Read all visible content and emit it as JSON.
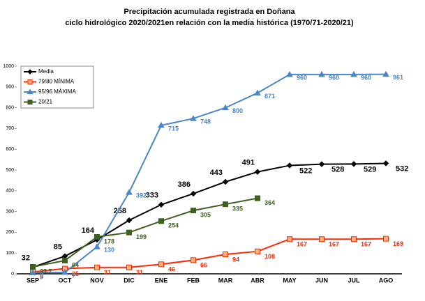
{
  "chart_data": {
    "type": "line",
    "title": "Precipitación acumulada registrada en Doñana",
    "subtitle": "ciclo hidrológico 2020/2021en relación con la media histórica (1970/71-2020/21)",
    "categories": [
      "SEP",
      "OCT",
      "NOV",
      "DIC",
      "ENE",
      "FEB",
      "MAR",
      "ABR",
      "MAY",
      "JUN",
      "JUL",
      "AGO"
    ],
    "series": [
      {
        "name": "Media",
        "color": "#000000",
        "marker": "diamond",
        "values": [
          32,
          85,
          164,
          258,
          333,
          386,
          443,
          491,
          522,
          528,
          529,
          532
        ]
      },
      {
        "name": "79/80 MÍNIMA",
        "color": "#ff2a00",
        "marker": "square",
        "values": [
          9,
          25,
          31,
          31,
          46,
          66,
          94,
          108,
          167,
          167,
          167,
          169
        ]
      },
      {
        "name": "95/96 MÁXIMA",
        "color": "#4a86c8",
        "marker": "triangle",
        "values": [
          5,
          7,
          130,
          392,
          715,
          748,
          800,
          871,
          960,
          960,
          960,
          961
        ]
      },
      {
        "name": "20/21",
        "color": "#3d5f1f",
        "marker": "square",
        "values": [
          33.7,
          64,
          178,
          199,
          254,
          305,
          335,
          364,
          null,
          null,
          null,
          null
        ],
        "value_labels": [
          "33,7",
          "64",
          "178",
          "199",
          "254",
          "305",
          "335",
          "364",
          null,
          null,
          null,
          null
        ]
      }
    ],
    "ylim": [
      0,
      1000
    ],
    "yticks": [
      0,
      100,
      200,
      300,
      400,
      500,
      600,
      700,
      800,
      900,
      1000
    ],
    "grid": false,
    "legend": "upper left"
  }
}
